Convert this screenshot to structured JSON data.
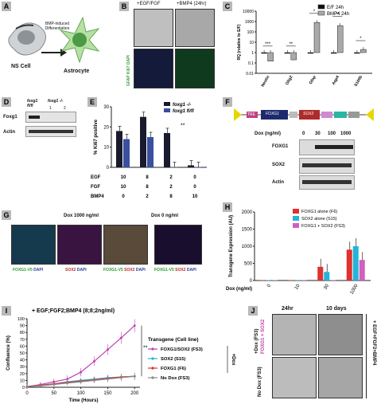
{
  "panels": {
    "A": {
      "letter": "A",
      "arrow_text": "BMP-induced Differentiation",
      "ns_cell": "NS Cell",
      "astrocyte": "Astrocyte"
    },
    "B": {
      "letter": "B",
      "col1": "+EGF/FGF",
      "col2": "+BMP4 (24hr)",
      "ylabel": "GFAP Ki67 DAPI"
    },
    "C": {
      "letter": "C",
      "ylabel": "RQ (relative to E/F)",
      "legend": [
        "E/F 24h",
        "BMP4 24h"
      ],
      "sig": [
        "***",
        "**",
        "*",
        "**",
        "*",
        "*"
      ]
    },
    "D": {
      "letter": "D",
      "col1": "foxg1 fl/fl",
      "col2": "foxg1 -/-",
      "lane1": "1",
      "lane2": "2",
      "row1": "Foxg1",
      "row2": "Actin"
    },
    "E": {
      "letter": "E",
      "ylabel": "% Ki67 positive",
      "legend": [
        "foxg1 -/-",
        "foxg1 fl/fl"
      ],
      "sig": "**",
      "rows": [
        {
          "label": "EGF",
          "values": [
            "10",
            "8",
            "2",
            "0"
          ]
        },
        {
          "label": "FGF",
          "values": [
            "10",
            "8",
            "2",
            "0"
          ]
        },
        {
          "label": "BMP4",
          "values": [
            "0",
            "2",
            "8",
            "10"
          ]
        }
      ]
    },
    "F": {
      "letter": "F",
      "construct": [
        "TRE",
        "FOXG1",
        "SOX2"
      ],
      "dox_label": "Dox (ng/ml)",
      "dox_values": [
        "0",
        "30",
        "100",
        "1000"
      ],
      "rows": [
        "FOXG1",
        "SOX2",
        "Actin"
      ]
    },
    "G": {
      "letter": "G",
      "left_title": "Dox 1000 ng/ml",
      "right_title": "Dox 0 ng/ml",
      "captions": [
        [
          "FOXG1-V5",
          "DAPI"
        ],
        [
          "SOX2",
          "DAPI"
        ],
        [
          "FOXG1-V5",
          "SOX2",
          "DAPI"
        ],
        [
          "FOXG1-V5",
          "SOX2",
          "DAPI"
        ]
      ]
    },
    "H": {
      "letter": "H",
      "ylabel": "Transgene Expression (AU)",
      "xlabel": "Dox (ng/ml)",
      "legend": [
        "FOXG1 alone (F6)",
        "SOX2 alone (S15)",
        "FOXG1 + SOX2 (FS3)"
      ]
    },
    "I": {
      "letter": "I",
      "title": "+ EGF;FGF2;BMP4 (8;8;2ng/ml)",
      "ylabel": "Confluence (%)",
      "xlabel": "Time (Hours)",
      "legend_title": "Transgene (Cell line)",
      "legend": [
        "FOXG1/SOX2 (FS3)",
        "SOX2 (S15)",
        "FOXG1 (F6)",
        "No Dox (FS3)"
      ],
      "dox_label": "+Dox",
      "sig": "**"
    },
    "J": {
      "letter": "J",
      "col1": "24hr",
      "col2": "10 days",
      "row1a": "+Dox (FS3)",
      "row1b": "FOXG1 + SOX2",
      "row2": "No Dox (FS3)",
      "side": "+ EGF+FGF2+BMP4"
    }
  },
  "chart_data": [
    {
      "type": "bar",
      "panel": "C",
      "categories": [
        "Nestin",
        "Olig2",
        "Gfap",
        "Aqp4",
        "S100b"
      ],
      "series": [
        {
          "name": "E/F 24h",
          "values": [
            1,
            1,
            1,
            1,
            1
          ]
        },
        {
          "name": "BMP4 24h",
          "values": [
            0.15,
            0.2,
            800,
            400,
            2
          ]
        }
      ],
      "ylabel": "RQ (relative to E/F)",
      "yscale": "log",
      "yticks": [
        "0.01",
        "0.1",
        "1",
        "10",
        "100",
        "1000",
        "10000"
      ],
      "colors": [
        "#111111",
        "#aaaaaa"
      ]
    },
    {
      "type": "bar",
      "panel": "E",
      "categories": [
        "1",
        "2",
        "3",
        "4"
      ],
      "series": [
        {
          "name": "foxg1 -/-",
          "values": [
            18,
            25,
            17,
            1
          ]
        },
        {
          "name": "foxg1 fl/fl",
          "values": [
            14,
            15,
            0,
            0
          ]
        }
      ],
      "ylabel": "% Ki67 positive",
      "ylim": [
        0,
        30
      ],
      "yticks": [
        "0",
        "10",
        "20",
        "30"
      ],
      "colors": [
        "#1a1a2e",
        "#3a4fa0"
      ]
    },
    {
      "type": "bar",
      "panel": "H",
      "categories": [
        "0",
        "10",
        "30",
        "1000"
      ],
      "series": [
        {
          "name": "FOXG1 alone (F6)",
          "values": [
            0,
            0,
            400,
            900
          ]
        },
        {
          "name": "SOX2 alone (S15)",
          "values": [
            0,
            0,
            250,
            1000
          ]
        },
        {
          "name": "FOXG1 + SOX2 (FS3)",
          "values": [
            0,
            0,
            0,
            600
          ]
        }
      ],
      "xlabel": "Dox (ng/ml)",
      "ylim": [
        0,
        2000
      ],
      "yticks": [
        "0",
        "500",
        "1000",
        "1500",
        "2000"
      ],
      "colors": [
        "#e03030",
        "#22b5d8",
        "#d060c0"
      ]
    },
    {
      "type": "line",
      "panel": "I",
      "x": [
        0,
        25,
        50,
        75,
        100,
        125,
        150,
        175,
        200
      ],
      "series": [
        {
          "name": "FOXG1/SOX2 (FS3)",
          "values": [
            1,
            4,
            8,
            12,
            22,
            38,
            55,
            72,
            90
          ]
        },
        {
          "name": "SOX2 (S15)",
          "values": [
            1,
            3,
            5,
            8,
            10,
            12,
            14,
            15,
            16
          ]
        },
        {
          "name": "FOXG1 (F6)",
          "values": [
            1,
            3,
            5,
            7,
            9,
            11,
            13,
            15,
            16
          ]
        },
        {
          "name": "No Dox (FS3)",
          "values": [
            1,
            2,
            4,
            6,
            8,
            10,
            12,
            14,
            16
          ]
        }
      ],
      "xlabel": "Time (Hours)",
      "ylabel": "Confluence (%)",
      "xlim": [
        0,
        210
      ],
      "ylim": [
        0,
        100
      ],
      "xticks": [
        "0",
        "50",
        "100",
        "150",
        "200"
      ],
      "yticks": [
        "0",
        "10",
        "20",
        "30",
        "40",
        "50",
        "60",
        "70",
        "80",
        "90",
        "100"
      ],
      "colors": [
        "#c040b0",
        "#22b5d8",
        "#e03030",
        "#888888"
      ]
    }
  ]
}
